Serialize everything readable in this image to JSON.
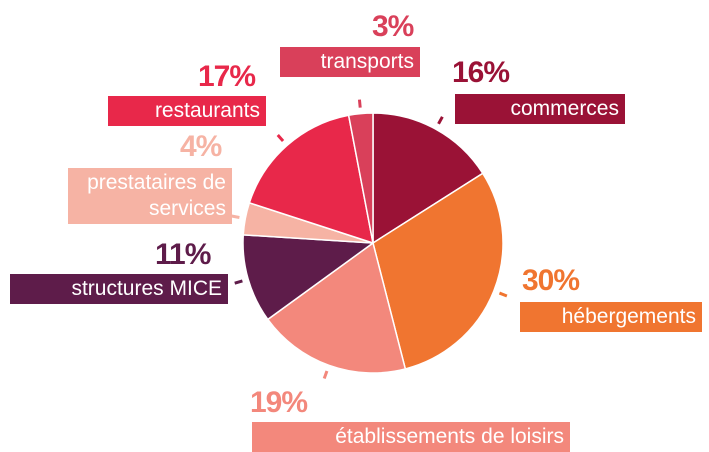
{
  "chart_data": {
    "type": "pie",
    "categories": [
      "commerces",
      "hébergements",
      "établissements de loisirs",
      "structures MICE",
      "prestataires de services",
      "restaurants",
      "transports"
    ],
    "values": [
      16,
      30,
      19,
      11,
      4,
      17,
      3
    ],
    "value_labels": [
      "16%",
      "30%",
      "19%",
      "11%",
      "4%",
      "17%",
      "3%"
    ],
    "colors": [
      "#9a1236",
      "#f07530",
      "#f3887c",
      "#5e1c4a",
      "#f6b3a4",
      "#e8284a",
      "#d9405a"
    ]
  }
}
